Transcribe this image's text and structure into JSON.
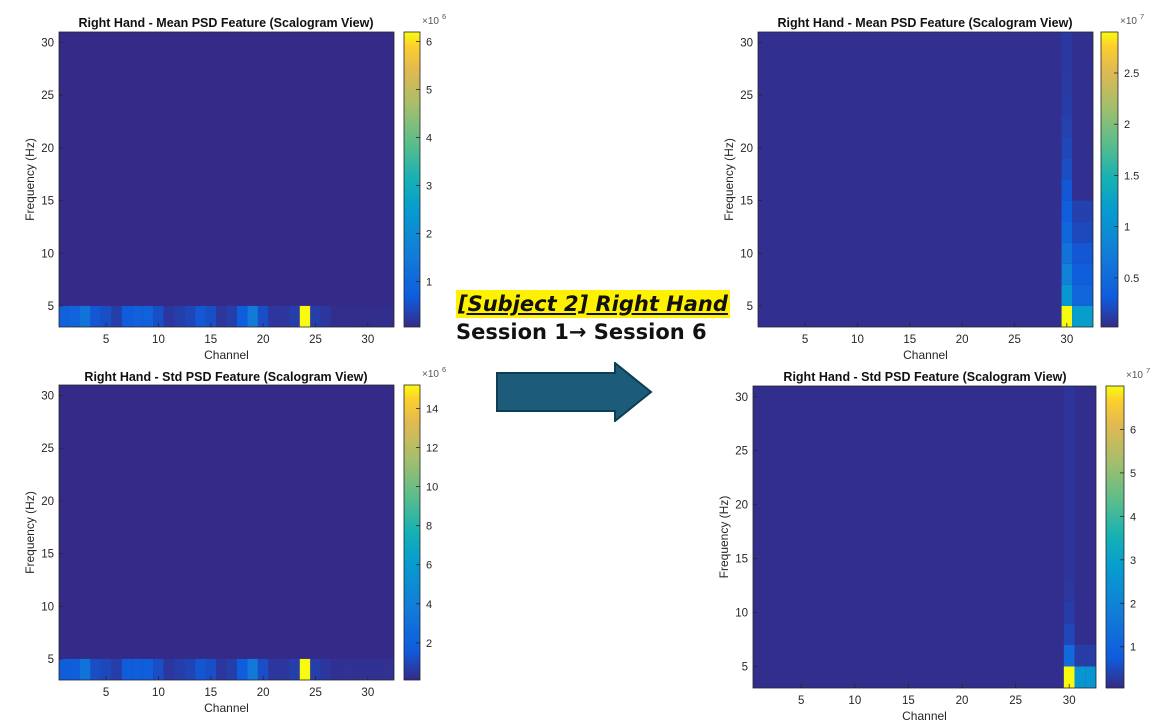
{
  "annotation": {
    "title": "[Subject 2] Right Hand",
    "subtitle": "Session 1→ Session 6"
  },
  "colors": {
    "arrow_fill": "#1c5c7a",
    "arrow_stroke": "#0e3d54",
    "highlight": "#fff200",
    "colormap": "parula"
  },
  "chart_data": [
    {
      "type": "heatmap",
      "title": "Right Hand - Mean PSD Feature (Scalogram View)",
      "xlabel": "Channel",
      "ylabel": "Frequency (Hz)",
      "xlim": [
        0.5,
        32.5
      ],
      "ylim": [
        3,
        31
      ],
      "xticks": [
        5,
        10,
        15,
        20,
        25,
        30
      ],
      "yticks": [
        5,
        10,
        15,
        20,
        25,
        30
      ],
      "colorbar": {
        "multiplier": "×10",
        "exponent": "6",
        "ticks": [
          1,
          2,
          3,
          4,
          5,
          6
        ],
        "range": [
          0.05,
          6.2
        ]
      },
      "background_value": 0.05,
      "rows": [
        {
          "freq_range": [
            3,
            5
          ],
          "values": [
            0.8,
            0.9,
            1.3,
            0.6,
            0.5,
            0.3,
            0.7,
            0.8,
            0.8,
            0.5,
            0.2,
            0.3,
            0.4,
            0.6,
            0.5,
            0.2,
            0.3,
            0.7,
            1.5,
            0.5,
            0.2,
            0.2,
            0.3,
            6.2,
            0.3,
            0.2,
            0.1,
            0.1,
            0.1,
            0.1,
            0.1,
            0.1
          ]
        }
      ]
    },
    {
      "type": "heatmap",
      "title": "Right Hand - Std PSD Feature (Scalogram View)",
      "xlabel": "Channel",
      "ylabel": "Frequency (Hz)",
      "xlim": [
        0.5,
        32.5
      ],
      "ylim": [
        3,
        31
      ],
      "xticks": [
        5,
        10,
        15,
        20,
        25,
        30
      ],
      "yticks": [
        5,
        10,
        15,
        20,
        25,
        30
      ],
      "colorbar": {
        "multiplier": "×10",
        "exponent": "6",
        "ticks": [
          2,
          4,
          6,
          8,
          10,
          12,
          14
        ],
        "range": [
          0.1,
          15.2
        ]
      },
      "background_value": 0.1,
      "rows": [
        {
          "freq_range": [
            3,
            5
          ],
          "values": [
            1.6,
            1.8,
            3.2,
            1.2,
            1.0,
            0.7,
            1.6,
            1.8,
            1.8,
            1.2,
            0.5,
            0.7,
            0.9,
            1.4,
            1.2,
            0.5,
            0.7,
            1.6,
            3.6,
            1.2,
            0.5,
            0.5,
            0.7,
            15.2,
            0.7,
            0.5,
            0.3,
            0.3,
            0.3,
            0.3,
            0.3,
            0.3
          ]
        }
      ]
    },
    {
      "type": "heatmap",
      "title": "Right Hand - Mean PSD Feature (Scalogram View)",
      "xlabel": "Channel",
      "ylabel": "Frequency (Hz)",
      "xlim": [
        0.5,
        32.5
      ],
      "ylim": [
        3,
        31
      ],
      "xticks": [
        5,
        10,
        15,
        20,
        25,
        30
      ],
      "yticks": [
        5,
        10,
        15,
        20,
        25,
        30
      ],
      "colorbar": {
        "multiplier": "×10",
        "exponent": "7",
        "ticks": [
          0.5,
          1,
          1.5,
          2,
          2.5
        ],
        "range": [
          0.02,
          2.9
        ]
      },
      "background_value": 0.05,
      "column_highlights": [
        {
          "channel": 30,
          "freq_range": [
            3,
            5
          ],
          "value": 2.9
        },
        {
          "channel": 30,
          "freq_range": [
            5,
            7
          ],
          "value": 1.1
        },
        {
          "channel": 30,
          "freq_range": [
            7,
            9
          ],
          "value": 0.8
        },
        {
          "channel": 30,
          "freq_range": [
            9,
            11
          ],
          "value": 0.6
        },
        {
          "channel": 30,
          "freq_range": [
            11,
            13
          ],
          "value": 0.45
        },
        {
          "channel": 30,
          "freq_range": [
            13,
            15
          ],
          "value": 0.35
        },
        {
          "channel": 30,
          "freq_range": [
            15,
            17
          ],
          "value": 0.28
        },
        {
          "channel": 30,
          "freq_range": [
            17,
            19
          ],
          "value": 0.22
        },
        {
          "channel": 30,
          "freq_range": [
            19,
            21
          ],
          "value": 0.18
        },
        {
          "channel": 30,
          "freq_range": [
            21,
            23
          ],
          "value": 0.15
        },
        {
          "channel": 30,
          "freq_range": [
            23,
            25
          ],
          "value": 0.13
        },
        {
          "channel": 30,
          "freq_range": [
            25,
            27
          ],
          "value": 0.11
        },
        {
          "channel": 30,
          "freq_range": [
            27,
            29
          ],
          "value": 0.1
        },
        {
          "channel": 30,
          "freq_range": [
            29,
            31
          ],
          "value": 0.1
        },
        {
          "channel": 31,
          "freq_range": [
            3,
            5
          ],
          "value": 1.2
        },
        {
          "channel": 32,
          "freq_range": [
            3,
            5
          ],
          "value": 1.2
        },
        {
          "channel": 31,
          "freq_range": [
            5,
            7
          ],
          "value": 0.45
        },
        {
          "channel": 32,
          "freq_range": [
            5,
            7
          ],
          "value": 0.45
        },
        {
          "channel": 31,
          "freq_range": [
            7,
            9
          ],
          "value": 0.35
        },
        {
          "channel": 32,
          "freq_range": [
            7,
            9
          ],
          "value": 0.35
        },
        {
          "channel": 31,
          "freq_range": [
            9,
            11
          ],
          "value": 0.28
        },
        {
          "channel": 32,
          "freq_range": [
            9,
            11
          ],
          "value": 0.28
        },
        {
          "channel": 31,
          "freq_range": [
            11,
            13
          ],
          "value": 0.2
        },
        {
          "channel": 32,
          "freq_range": [
            11,
            13
          ],
          "value": 0.2
        },
        {
          "channel": 31,
          "freq_range": [
            13,
            15
          ],
          "value": 0.15
        },
        {
          "channel": 32,
          "freq_range": [
            13,
            15
          ],
          "value": 0.15
        }
      ]
    },
    {
      "type": "heatmap",
      "title": "Right Hand - Std PSD Feature (Scalogram View)",
      "xlabel": "Channel",
      "ylabel": "Frequency (Hz)",
      "xlim": [
        0.5,
        32.5
      ],
      "ylim": [
        3,
        31
      ],
      "xticks": [
        5,
        10,
        15,
        20,
        25,
        30
      ],
      "yticks": [
        5,
        10,
        15,
        20,
        25,
        30
      ],
      "colorbar": {
        "multiplier": "×10",
        "exponent": "7",
        "ticks": [
          1,
          2,
          3,
          4,
          5,
          6
        ],
        "range": [
          0.05,
          7
        ]
      },
      "background_value": 0.1,
      "column_highlights": [
        {
          "channel": 30,
          "freq_range": [
            3,
            5
          ],
          "value": 7.0
        },
        {
          "channel": 30,
          "freq_range": [
            5,
            7
          ],
          "value": 1.2
        },
        {
          "channel": 30,
          "freq_range": [
            7,
            9
          ],
          "value": 0.45
        },
        {
          "channel": 30,
          "freq_range": [
            9,
            11
          ],
          "value": 0.3
        },
        {
          "channel": 30,
          "freq_range": [
            11,
            13
          ],
          "value": 0.25
        },
        {
          "channel": 30,
          "freq_range": [
            13,
            31
          ],
          "value": 0.2
        },
        {
          "channel": 31,
          "freq_range": [
            3,
            5
          ],
          "value": 2.6
        },
        {
          "channel": 32,
          "freq_range": [
            3,
            5
          ],
          "value": 2.6
        },
        {
          "channel": 31,
          "freq_range": [
            5,
            7
          ],
          "value": 0.3
        },
        {
          "channel": 32,
          "freq_range": [
            5,
            7
          ],
          "value": 0.3
        }
      ]
    }
  ]
}
